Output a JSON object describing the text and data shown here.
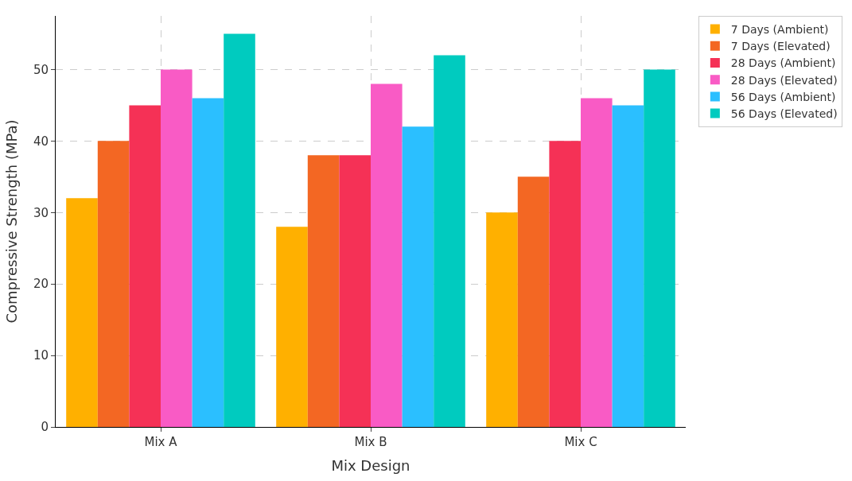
{
  "chart_data": {
    "type": "bar",
    "xlabel": "Mix Design",
    "ylabel": "Compressive Strength (MPa)",
    "categories": [
      "Mix A",
      "Mix B",
      "Mix C"
    ],
    "series": [
      {
        "name": "7 Days (Ambient)",
        "color": "#ffb000",
        "values": [
          32,
          28,
          30
        ]
      },
      {
        "name": "7 Days (Elevated)",
        "color": "#f36723",
        "values": [
          40,
          38,
          35
        ]
      },
      {
        "name": "28 Days (Ambient)",
        "color": "#f53156",
        "values": [
          45,
          38,
          40
        ]
      },
      {
        "name": "28 Days (Elevated)",
        "color": "#f95bc5",
        "values": [
          50,
          48,
          46
        ]
      },
      {
        "name": "56 Days (Ambient)",
        "color": "#2bbfff",
        "values": [
          46,
          42,
          45
        ]
      },
      {
        "name": "56 Days (Elevated)",
        "color": "#00cbbf",
        "values": [
          55,
          52,
          50
        ]
      }
    ],
    "ylim": [
      0,
      57.5
    ],
    "yticks": [
      0,
      10,
      20,
      30,
      40,
      50
    ],
    "grid": true,
    "legend": "right"
  }
}
